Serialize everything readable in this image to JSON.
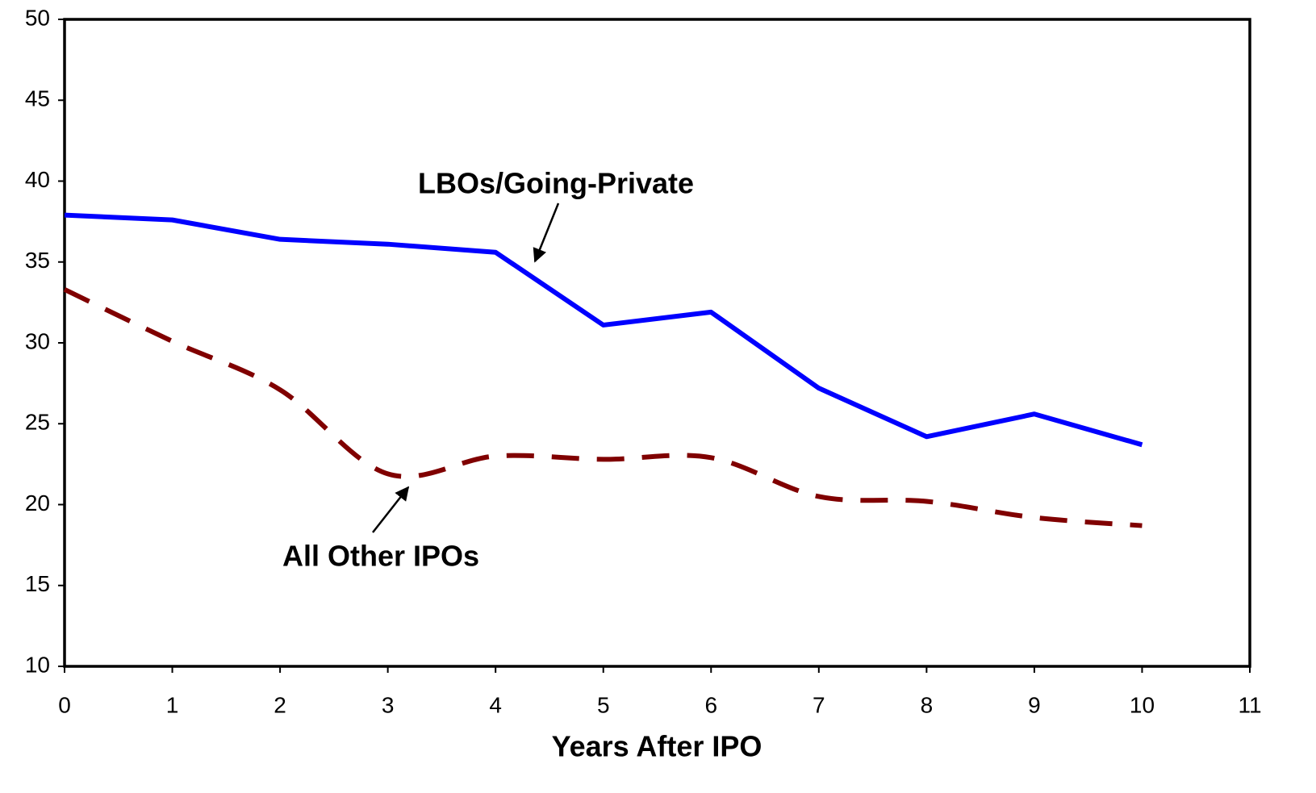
{
  "chart_data": {
    "type": "line",
    "x_label": "Years After IPO",
    "x": [
      0,
      1,
      2,
      3,
      4,
      5,
      6,
      7,
      8,
      9,
      10
    ],
    "series": [
      {
        "name": "LBOs/Going-Private",
        "color": "#0000ff",
        "dash": "solid",
        "smooth": false,
        "values": [
          37.9,
          37.6,
          36.4,
          36.1,
          35.6,
          31.1,
          31.9,
          27.2,
          24.2,
          25.6,
          23.7
        ]
      },
      {
        "name": "All Other IPOs",
        "color": "#800000",
        "dash": "dashed",
        "smooth": true,
        "values": [
          33.3,
          30.1,
          27.1,
          21.9,
          23.0,
          22.8,
          22.9,
          20.5,
          20.2,
          19.2,
          18.7
        ]
      }
    ],
    "xlim": [
      0,
      11
    ],
    "xticks": [
      0,
      1,
      2,
      3,
      4,
      5,
      6,
      7,
      8,
      9,
      10,
      11
    ],
    "ylim": [
      10,
      50
    ],
    "yticks": [
      10,
      15,
      20,
      25,
      30,
      35,
      40,
      45,
      50
    ],
    "grid": false
  }
}
